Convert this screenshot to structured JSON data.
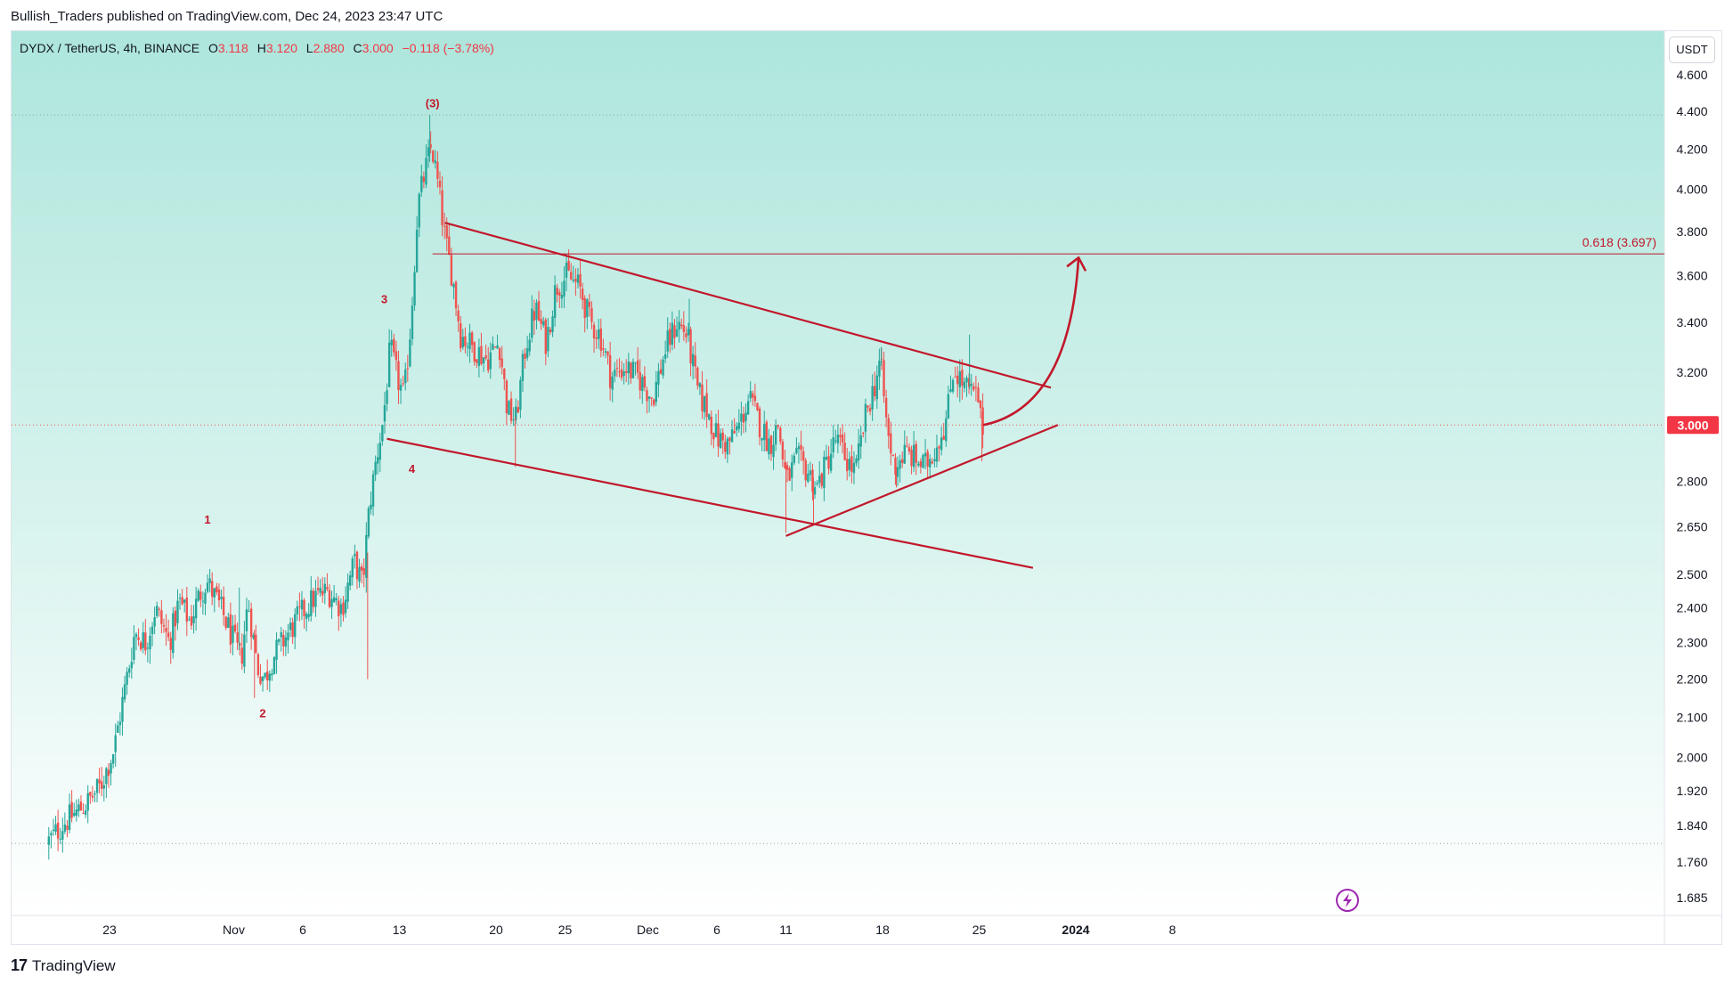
{
  "header": {
    "published": "Bullish_Traders published on TradingView.com, Dec 24, 2023 23:47 UTC"
  },
  "legend": {
    "symbol": "DYDX / TetherUS, 4h, BINANCE",
    "o_label": "O",
    "o": "3.118",
    "h_label": "H",
    "h": "3.120",
    "l_label": "L",
    "l": "2.880",
    "c_label": "C",
    "c": "3.000",
    "change": "−0.118 (−3.78%)"
  },
  "currency_button": "USDT",
  "footer": {
    "logo": "17",
    "brand": "TradingView"
  },
  "colors": {
    "up": "#26a69a",
    "down": "#ef5350",
    "drawing": "#c2182b",
    "bg_top": "#ade6dc",
    "bg_bottom": "#ffffff"
  },
  "chart_data": {
    "type": "candlestick",
    "symbol": "DYDX/USDT",
    "interval": "4h",
    "y_scale": "log",
    "ylim": [
      1.63,
      4.75
    ],
    "y_ticks": [
      "4.600",
      "4.400",
      "4.200",
      "4.000",
      "3.800",
      "3.600",
      "3.400",
      "3.200",
      "3.000",
      "2.800",
      "2.650",
      "2.500",
      "2.400",
      "2.300",
      "2.200",
      "2.100",
      "2.000",
      "1.920",
      "1.840",
      "1.760",
      "1.685"
    ],
    "x_ticks": [
      {
        "label": "23",
        "day": 0
      },
      {
        "label": "Nov",
        "day": 9
      },
      {
        "label": "6",
        "day": 14
      },
      {
        "label": "13",
        "day": 21
      },
      {
        "label": "20",
        "day": 28
      },
      {
        "label": "25",
        "day": 33
      },
      {
        "label": "Dec",
        "day": 39
      },
      {
        "label": "6",
        "day": 44
      },
      {
        "label": "11",
        "day": 49
      },
      {
        "label": "18",
        "day": 56
      },
      {
        "label": "25",
        "day": 63
      },
      {
        "label": "2024",
        "day": 70
      },
      {
        "label": "8",
        "day": 77
      }
    ],
    "last_price": "3.000",
    "high_dotted_level": 4.38,
    "low_dotted_level": 1.8,
    "fib_label": "0.618 (3.697)",
    "fib_level": 3.697,
    "fib_start_day": 23.4,
    "wave_labels": [
      {
        "text": "1",
        "day": 7.1,
        "price": 2.66
      },
      {
        "text": "2",
        "day": 11.1,
        "price": 2.1
      },
      {
        "text": "3",
        "day": 19.9,
        "price": 3.48
      },
      {
        "text": "4",
        "day": 21.9,
        "price": 2.83
      },
      {
        "text": "(3)",
        "day": 23.4,
        "price": 4.42
      }
    ],
    "trendlines": [
      {
        "name": "channel-top",
        "from": {
          "day": 24.3,
          "price": 3.84
        },
        "to": {
          "day": 68.2,
          "price": 3.14
        }
      },
      {
        "name": "channel-bottom",
        "from": {
          "day": 20.1,
          "price": 2.95
        },
        "to": {
          "day": 66.9,
          "price": 2.52
        }
      },
      {
        "name": "support-line",
        "from": {
          "day": 49.0,
          "price": 2.62
        },
        "to": {
          "day": 68.7,
          "price": 3.0
        }
      }
    ],
    "projection_arrow": {
      "from": {
        "day": 63.3,
        "price": 3.0
      },
      "to": {
        "day": 70.2,
        "price": 3.68
      }
    },
    "price_path": [
      {
        "day": -4.4,
        "price": 1.8
      },
      {
        "day": -3.0,
        "price": 1.85
      },
      {
        "day": -1.5,
        "price": 1.89
      },
      {
        "day": -0.5,
        "price": 1.93
      },
      {
        "day": 0.5,
        "price": 2.02
      },
      {
        "day": 1.0,
        "price": 2.12
      },
      {
        "day": 1.6,
        "price": 2.24
      },
      {
        "day": 2.0,
        "price": 2.33
      },
      {
        "day": 2.8,
        "price": 2.3
      },
      {
        "day": 3.5,
        "price": 2.4
      },
      {
        "day": 4.5,
        "price": 2.3
      },
      {
        "day": 5.2,
        "price": 2.42
      },
      {
        "day": 6.0,
        "price": 2.36
      },
      {
        "day": 6.7,
        "price": 2.44
      },
      {
        "day": 7.2,
        "price": 2.48
      },
      {
        "day": 8.2,
        "price": 2.4
      },
      {
        "day": 9.0,
        "price": 2.32
      },
      {
        "day": 9.7,
        "price": 2.25
      },
      {
        "day": 10.2,
        "price": 2.42
      },
      {
        "day": 10.9,
        "price": 2.23
      },
      {
        "day": 11.4,
        "price": 2.2
      },
      {
        "day": 12.0,
        "price": 2.26
      },
      {
        "day": 13.0,
        "price": 2.32
      },
      {
        "day": 14.0,
        "price": 2.38
      },
      {
        "day": 15.0,
        "price": 2.43
      },
      {
        "day": 16.0,
        "price": 2.45
      },
      {
        "day": 17.0,
        "price": 2.4
      },
      {
        "day": 17.9,
        "price": 2.54
      },
      {
        "day": 18.5,
        "price": 2.47
      },
      {
        "day": 19.0,
        "price": 2.72
      },
      {
        "day": 19.5,
        "price": 2.88
      },
      {
        "day": 20.0,
        "price": 3.02
      },
      {
        "day": 20.5,
        "price": 3.3
      },
      {
        "day": 21.0,
        "price": 3.18
      },
      {
        "day": 21.5,
        "price": 3.1
      },
      {
        "day": 22.0,
        "price": 3.4
      },
      {
        "day": 22.5,
        "price": 3.92
      },
      {
        "day": 23.0,
        "price": 4.08
      },
      {
        "day": 23.5,
        "price": 4.22
      },
      {
        "day": 24.0,
        "price": 4.0
      },
      {
        "day": 24.5,
        "price": 3.75
      },
      {
        "day": 25.0,
        "price": 3.6
      },
      {
        "day": 25.6,
        "price": 3.35
      },
      {
        "day": 26.5,
        "price": 3.3
      },
      {
        "day": 27.5,
        "price": 3.25
      },
      {
        "day": 28.4,
        "price": 3.32
      },
      {
        "day": 29.0,
        "price": 3.05
      },
      {
        "day": 29.6,
        "price": 3.02
      },
      {
        "day": 30.3,
        "price": 3.3
      },
      {
        "day": 31.0,
        "price": 3.46
      },
      {
        "day": 31.8,
        "price": 3.32
      },
      {
        "day": 32.5,
        "price": 3.55
      },
      {
        "day": 33.3,
        "price": 3.6
      },
      {
        "day": 34.2,
        "price": 3.55
      },
      {
        "day": 35.0,
        "price": 3.4
      },
      {
        "day": 35.7,
        "price": 3.35
      },
      {
        "day": 36.5,
        "price": 3.18
      },
      {
        "day": 37.5,
        "price": 3.22
      },
      {
        "day": 38.5,
        "price": 3.18
      },
      {
        "day": 39.5,
        "price": 3.1
      },
      {
        "day": 40.5,
        "price": 3.3
      },
      {
        "day": 41.3,
        "price": 3.4
      },
      {
        "day": 42.0,
        "price": 3.35
      },
      {
        "day": 42.8,
        "price": 3.12
      },
      {
        "day": 43.5,
        "price": 3.05
      },
      {
        "day": 44.2,
        "price": 2.95
      },
      {
        "day": 45.0,
        "price": 2.93
      },
      {
        "day": 45.8,
        "price": 3.0
      },
      {
        "day": 46.5,
        "price": 3.1
      },
      {
        "day": 47.3,
        "price": 3.0
      },
      {
        "day": 48.0,
        "price": 2.93
      },
      {
        "day": 48.6,
        "price": 3.0
      },
      {
        "day": 49.2,
        "price": 2.8
      },
      {
        "day": 50.0,
        "price": 2.88
      },
      {
        "day": 50.8,
        "price": 2.83
      },
      {
        "day": 51.4,
        "price": 2.78
      },
      {
        "day": 52.0,
        "price": 2.85
      },
      {
        "day": 52.8,
        "price": 2.95
      },
      {
        "day": 53.5,
        "price": 2.88
      },
      {
        "day": 54.2,
        "price": 2.83
      },
      {
        "day": 55.0,
        "price": 3.05
      },
      {
        "day": 55.6,
        "price": 3.15
      },
      {
        "day": 56.0,
        "price": 3.25
      },
      {
        "day": 56.5,
        "price": 2.98
      },
      {
        "day": 57.0,
        "price": 2.85
      },
      {
        "day": 57.8,
        "price": 2.9
      },
      {
        "day": 58.5,
        "price": 2.88
      },
      {
        "day": 59.2,
        "price": 2.85
      },
      {
        "day": 60.0,
        "price": 2.92
      },
      {
        "day": 60.8,
        "price": 3.02
      },
      {
        "day": 61.3,
        "price": 3.22
      },
      {
        "day": 62.0,
        "price": 3.15
      },
      {
        "day": 62.6,
        "price": 3.12
      },
      {
        "day": 63.1,
        "price": 3.1
      },
      {
        "day": 63.3,
        "price": 3.0
      }
    ],
    "notable_wicks": [
      {
        "day": 9.4,
        "price": 2.46
      },
      {
        "day": 10.5,
        "price": 2.15
      },
      {
        "day": 18.7,
        "price": 2.2
      },
      {
        "day": 23.2,
        "price": 4.38
      },
      {
        "day": 29.4,
        "price": 2.85
      },
      {
        "day": 42.0,
        "price": 3.5
      },
      {
        "day": 49.0,
        "price": 2.63
      },
      {
        "day": 51.0,
        "price": 2.66
      },
      {
        "day": 55.9,
        "price": 3.3
      },
      {
        "day": 57.0,
        "price": 2.78
      },
      {
        "day": 62.3,
        "price": 3.35
      },
      {
        "day": 63.2,
        "price": 2.87
      }
    ]
  }
}
